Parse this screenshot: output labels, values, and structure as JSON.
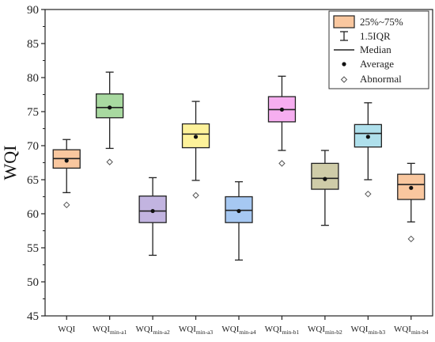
{
  "chart_data": {
    "type": "box",
    "ylabel": "WQI",
    "xlabel": "",
    "ylim": [
      45,
      90
    ],
    "yticks": [
      45,
      50,
      55,
      60,
      65,
      70,
      75,
      80,
      85,
      90
    ],
    "grid": false,
    "legend_position": "top-right",
    "legend": {
      "box_label": "25%~75%",
      "whisker_label": "1.5IQR",
      "median_label": "Median",
      "average_label": "Average",
      "outlier_label": "Abnormal"
    },
    "categories": [
      {
        "base": "WQI",
        "sub": ""
      },
      {
        "base": "WQI",
        "sub": "min-a1"
      },
      {
        "base": "WQI",
        "sub": "min-a2"
      },
      {
        "base": "WQI",
        "sub": "min-a3"
      },
      {
        "base": "WQI",
        "sub": "min-a4"
      },
      {
        "base": "WQI",
        "sub": "min-b1"
      },
      {
        "base": "WQI",
        "sub": "min-b2"
      },
      {
        "base": "WQI",
        "sub": "min-b3"
      },
      {
        "base": "WQI",
        "sub": "min-b4"
      }
    ],
    "boxes": [
      {
        "whisker_low": 63.1,
        "q1": 66.7,
        "median": 68.1,
        "q3": 69.4,
        "whisker_high": 70.9,
        "mean": 67.8,
        "outlier": 61.3,
        "color": "#f9c79f"
      },
      {
        "whisker_low": 69.6,
        "q1": 74.1,
        "median": 75.6,
        "q3": 77.6,
        "whisker_high": 80.8,
        "mean": 75.6,
        "outlier": 67.6,
        "color": "#a8d9a0"
      },
      {
        "whisker_low": 53.9,
        "q1": 58.7,
        "median": 60.4,
        "q3": 62.6,
        "whisker_high": 65.3,
        "mean": 60.4,
        "outlier": null,
        "color": "#c2b4e0"
      },
      {
        "whisker_low": 64.9,
        "q1": 69.7,
        "median": 71.7,
        "q3": 73.2,
        "whisker_high": 76.5,
        "mean": 71.3,
        "outlier": 62.7,
        "color": "#fdf29a"
      },
      {
        "whisker_low": 53.2,
        "q1": 58.7,
        "median": 60.5,
        "q3": 62.5,
        "whisker_high": 64.7,
        "mean": 60.4,
        "outlier": null,
        "color": "#a6c8f2"
      },
      {
        "whisker_low": 69.3,
        "q1": 73.5,
        "median": 75.3,
        "q3": 77.2,
        "whisker_high": 80.2,
        "mean": 75.3,
        "outlier": 67.4,
        "color": "#f6aef0"
      },
      {
        "whisker_low": 58.3,
        "q1": 63.6,
        "median": 65.2,
        "q3": 67.4,
        "whisker_high": 69.3,
        "mean": 65.1,
        "outlier": null,
        "color": "#cfcca8"
      },
      {
        "whisker_low": 65.0,
        "q1": 69.8,
        "median": 71.8,
        "q3": 73.1,
        "whisker_high": 76.3,
        "mean": 71.3,
        "outlier": 62.9,
        "color": "#afe0ec"
      },
      {
        "whisker_low": 58.8,
        "q1": 62.1,
        "median": 64.3,
        "q3": 65.8,
        "whisker_high": 67.4,
        "mean": 63.8,
        "outlier": 56.3,
        "color": "#f9c79f"
      }
    ]
  }
}
